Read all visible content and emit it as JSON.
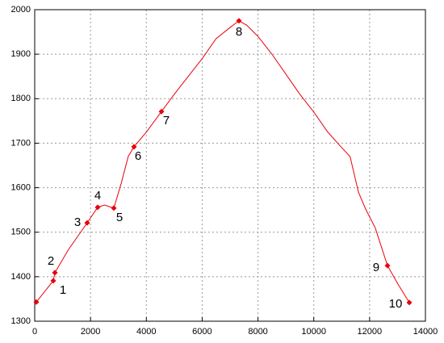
{
  "chart_data": {
    "type": "line",
    "xlim": [
      0,
      14000
    ],
    "xticks": [
      0,
      2000,
      4000,
      6000,
      8000,
      10000,
      12000,
      14000
    ],
    "ylim": [
      1300,
      2000
    ],
    "yticks": [
      1300,
      1400,
      1500,
      1600,
      1700,
      1800,
      1900,
      2000
    ],
    "grid": true,
    "series": [
      {
        "color": "#e8000b",
        "x": [
          58,
          665,
          723,
          1200,
          1880,
          2256,
          2500,
          2650,
          2835,
          3100,
          3350,
          3558,
          4000,
          4541,
          5000,
          5500,
          6000,
          6500,
          7000,
          7318,
          7600,
          8000,
          8500,
          9000,
          9500,
          10000,
          10500,
          11000,
          11300,
          11600,
          11850,
          12200,
          12640,
          13000,
          13422
        ],
        "values": [
          1343,
          1391,
          1409,
          1460,
          1521,
          1556,
          1561,
          1558,
          1554,
          1610,
          1670,
          1692,
          1725,
          1771,
          1810,
          1850,
          1890,
          1935,
          1960,
          1975,
          1965,
          1940,
          1900,
          1855,
          1810,
          1770,
          1725,
          1690,
          1670,
          1590,
          1553,
          1510,
          1425,
          1385,
          1342
        ]
      },
      {
        "color": "#e8000b",
        "x": [
          58,
          665,
          723,
          1880,
          2256,
          2835,
          3558,
          4541,
          7318,
          12640,
          13422
        ],
        "values": [
          1343,
          1391,
          1409,
          1521,
          1556,
          1554,
          1692,
          1771,
          1975,
          1425,
          1342
        ],
        "labels": [
          null,
          "1",
          "2",
          "3",
          "4",
          "5",
          "6",
          "7",
          "8",
          "9",
          "10"
        ]
      }
    ]
  }
}
